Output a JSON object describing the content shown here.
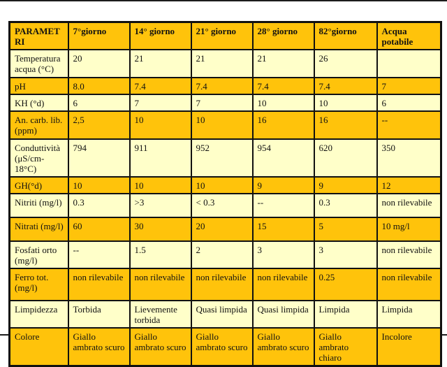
{
  "colors": {
    "row_gold": "#ffc30b",
    "row_light_yellow": "#ffffc9",
    "grid_border": "#111111",
    "page_background": "#ffffff",
    "text": "#111111"
  },
  "table": {
    "columns": [
      "PARAMETRI",
      "7°giorno",
      "14° giorno",
      "21° giorno",
      "28° giorno",
      "82°giorno",
      "Acqua potabile"
    ],
    "rows": [
      {
        "param": "Temperatura acqua (°C)",
        "values": [
          "20",
          "21",
          "21",
          "21",
          "26",
          ""
        ]
      },
      {
        "param": "pH",
        "values": [
          "8.0",
          "7.4",
          "7.4",
          "7.4",
          "7.4",
          "7"
        ]
      },
      {
        "param": "KH (°d)",
        "values": [
          "6",
          "7",
          "7",
          "10",
          "10",
          "6"
        ]
      },
      {
        "param": "An. carb. lib. (ppm)",
        "values": [
          "2,5",
          "10",
          "10",
          "16",
          "16",
          "--"
        ]
      },
      {
        "param": "Conduttività (μS/cm-18°C)",
        "values": [
          "794",
          "911",
          "952",
          "954",
          "620",
          "350"
        ]
      },
      {
        "param": "GH(°d)",
        "values": [
          "10",
          "10",
          "10",
          "9",
          "9",
          "12"
        ]
      },
      {
        "param": "Nitriti (mg/l)",
        "values": [
          "0.3",
          ">3",
          "< 0.3",
          "--",
          "0.3",
          "non rilevabile"
        ]
      },
      {
        "param": "Nitrati (mg/l)",
        "values": [
          "60",
          "30",
          "20",
          "15",
          "5",
          "10 mg/l"
        ]
      },
      {
        "param": "Fosfati orto (mg/l)",
        "values": [
          "--",
          "1.5",
          "2",
          "3",
          "3",
          "non rilevabile"
        ]
      },
      {
        "param": "Ferro tot. (mg/l)",
        "values": [
          "non rilevabile",
          "non rilevabile",
          "non rilevabile",
          "non rilevabile",
          "0.25",
          "non rilevabile"
        ]
      },
      {
        "param": "Limpidezza",
        "values": [
          "Torbida",
          "Lievemente torbida",
          "Quasi limpida",
          "Quasi limpida",
          "Limpida",
          "Limpida"
        ]
      },
      {
        "param": "Colore",
        "values": [
          "Giallo ambrato scuro",
          "Giallo ambrato scuro",
          "Giallo ambrato scuro",
          "Giallo ambrato scuro",
          "Giallo ambrato chiaro",
          "Incolore"
        ]
      }
    ]
  }
}
